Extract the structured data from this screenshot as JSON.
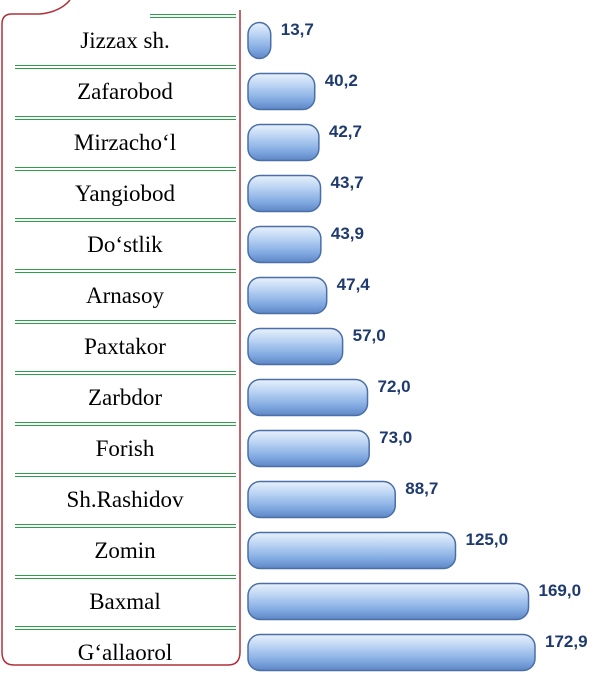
{
  "chart_data": {
    "type": "bar",
    "orientation": "horizontal",
    "categories": [
      "Jizzax sh.",
      "Zafarobod",
      "Mirzacho‘l",
      "Yangiobod",
      "Do‘stlik",
      "Arnasoy",
      "Paxtakor",
      "Zarbdor",
      "Forish",
      "Sh.Rashidov",
      "Zomin",
      "Baxmal",
      "G‘allaorol"
    ],
    "values": [
      13.7,
      40.2,
      42.7,
      43.7,
      43.9,
      47.4,
      57.0,
      72.0,
      73.0,
      88.7,
      125.0,
      169.0,
      172.9
    ],
    "value_labels": [
      "13,7",
      "40,2",
      "42,7",
      "43,7",
      "43,9",
      "47,4",
      "57,0",
      "72,0",
      "73,0",
      "88,7",
      "125,0",
      "169,0",
      "172,9"
    ],
    "color": "#7fa8e0"
  }
}
